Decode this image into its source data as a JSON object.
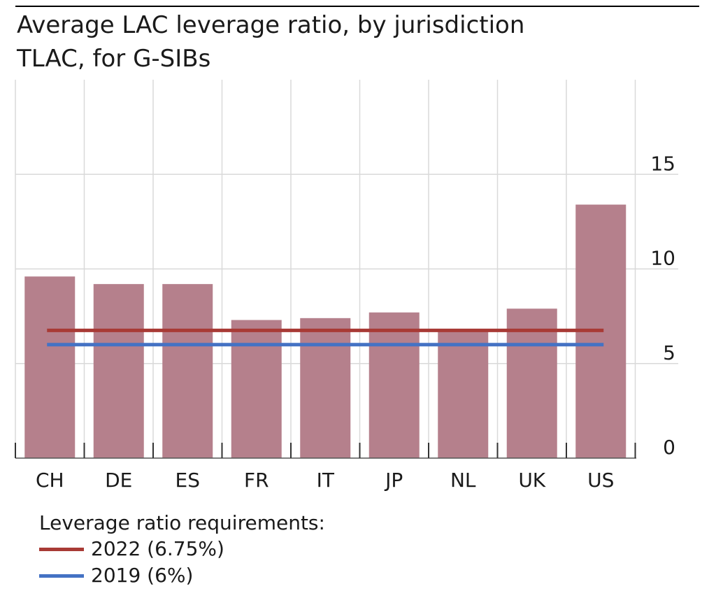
{
  "chart_data": {
    "type": "bar",
    "title": "Average LAC leverage ratio, by jurisdiction",
    "subtitle": "TLAC, for G-SIBs",
    "categories": [
      "CH",
      "DE",
      "ES",
      "FR",
      "IT",
      "JP",
      "NL",
      "UK",
      "US"
    ],
    "values": [
      9.6,
      9.2,
      9.2,
      7.3,
      7.4,
      7.7,
      6.7,
      7.9,
      13.4
    ],
    "y_axis": {
      "side": "right",
      "ticks": [
        0,
        5,
        10,
        15
      ],
      "ylim": [
        0,
        20
      ]
    },
    "bar_color": "#b5808c",
    "reference_lines": [
      {
        "name": "2022 (6.75%)",
        "value": 6.75,
        "color": "#a83a35"
      },
      {
        "name": "2019 (6%)",
        "value": 6.0,
        "color": "#4472c4"
      }
    ],
    "legend": {
      "heading": "Leverage ratio requirements:",
      "placement": "bottom-left"
    },
    "grid": true
  }
}
